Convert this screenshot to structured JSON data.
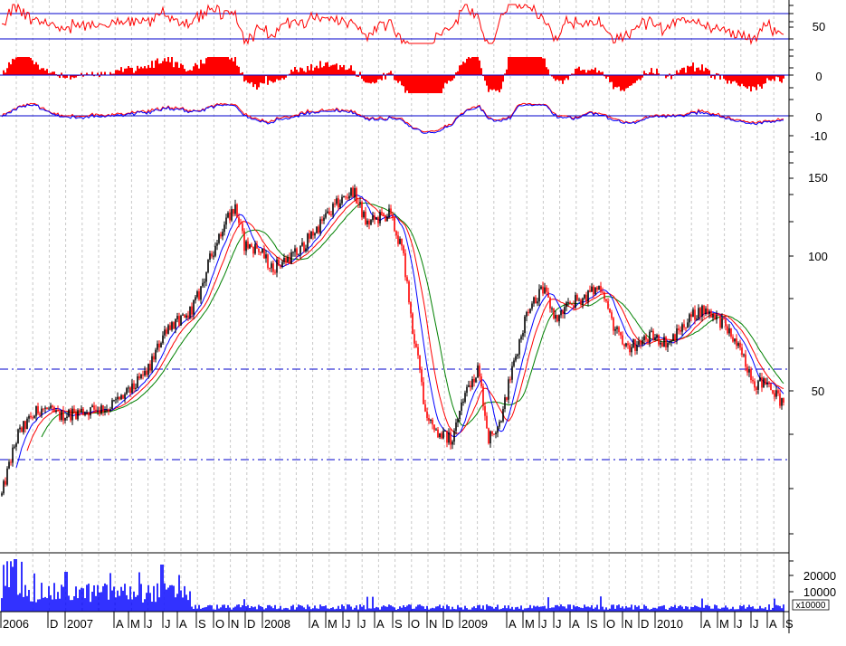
{
  "chart_data": {
    "type": "candlestick",
    "title": "",
    "price_axis": {
      "ticks": [
        50,
        100,
        150
      ],
      "scale": "log"
    },
    "x_axis": {
      "labels": [
        "2006",
        "D",
        "2007",
        "A",
        "M",
        "J",
        "J",
        "A",
        "S",
        "O",
        "N",
        "D",
        "2008",
        "A",
        "M",
        "J",
        "J",
        "A",
        "S",
        "O",
        "N",
        "D",
        "2009",
        "A",
        "M",
        "J",
        "J",
        "A",
        "S",
        "O",
        "N",
        "D",
        "2010",
        "A",
        "M",
        "J",
        "J",
        "A",
        "S"
      ]
    },
    "price_points": [
      [
        0,
        28
      ],
      [
        20,
        40
      ],
      [
        45,
        46
      ],
      [
        65,
        44
      ],
      [
        90,
        45
      ],
      [
        120,
        46
      ],
      [
        145,
        50
      ],
      [
        165,
        56
      ],
      [
        185,
        70
      ],
      [
        205,
        72
      ],
      [
        220,
        82
      ],
      [
        235,
        102
      ],
      [
        250,
        122
      ],
      [
        260,
        128
      ],
      [
        270,
        106
      ],
      [
        285,
        104
      ],
      [
        300,
        94
      ],
      [
        315,
        98
      ],
      [
        330,
        102
      ],
      [
        345,
        112
      ],
      [
        360,
        122
      ],
      [
        375,
        132
      ],
      [
        390,
        140
      ],
      [
        405,
        118
      ],
      [
        420,
        122
      ],
      [
        430,
        124
      ],
      [
        445,
        102
      ],
      [
        455,
        70
      ],
      [
        470,
        45
      ],
      [
        485,
        40
      ],
      [
        500,
        39
      ],
      [
        515,
        50
      ],
      [
        528,
        56
      ],
      [
        540,
        39
      ],
      [
        555,
        44
      ],
      [
        570,
        60
      ],
      [
        585,
        78
      ],
      [
        600,
        84
      ],
      [
        615,
        72
      ],
      [
        630,
        78
      ],
      [
        650,
        82
      ],
      [
        665,
        86
      ],
      [
        675,
        72
      ],
      [
        690,
        62
      ],
      [
        705,
        64
      ],
      [
        720,
        66
      ],
      [
        740,
        64
      ],
      [
        760,
        72
      ],
      [
        775,
        76
      ],
      [
        790,
        74
      ],
      [
        805,
        68
      ],
      [
        820,
        60
      ],
      [
        835,
        52
      ],
      [
        850,
        52
      ],
      [
        866,
        46
      ]
    ],
    "upper_oscillator": {
      "ticks": [
        50
      ]
    },
    "histogram_oscillator": {
      "ticks": [
        0
      ]
    },
    "lower_oscillator": {
      "ticks": [
        0,
        -10
      ]
    },
    "volume": {
      "ticks": [
        20000,
        10000
      ],
      "unit": "x10000"
    },
    "reference_levels": [
      56,
      36
    ],
    "colors": {
      "up": "#000000",
      "down": "#ff0000",
      "ma_fast": "#0000ff",
      "ma_mid": "#ff0000",
      "ma_slow": "#008000",
      "axis_line": "#0000cc",
      "volume": "#0000ff",
      "grid": "#c8c8c8"
    }
  }
}
